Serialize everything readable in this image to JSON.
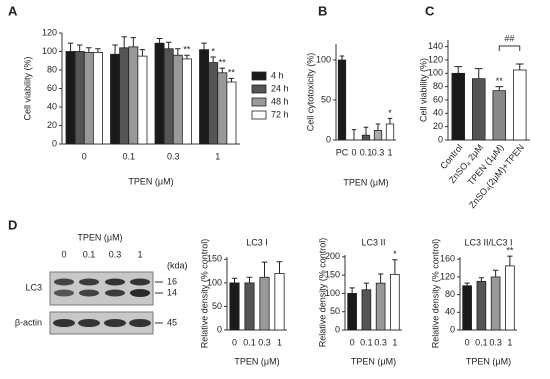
{
  "chart_data": [
    {
      "type": "bar",
      "panel_label": "A",
      "y_label": "Cell viability  (%)",
      "x_label": "TPEN (μM)",
      "categories": [
        "0",
        "0.1",
        "0.3",
        "1"
      ],
      "series": [
        {
          "name": "4 h",
          "color": "#1a1a1a",
          "values": [
            100,
            97,
            109,
            102
          ],
          "errors": [
            9,
            10,
            5,
            7
          ],
          "significance": [
            null,
            null,
            null,
            null
          ]
        },
        {
          "name": "24 h",
          "color": "#555555",
          "values": [
            100,
            104,
            103,
            88
          ],
          "errors": [
            7,
            12,
            7,
            6
          ],
          "significance": [
            null,
            null,
            null,
            "*"
          ]
        },
        {
          "name": "48 h",
          "color": "#999999",
          "values": [
            99,
            105,
            96,
            77
          ],
          "errors": [
            5,
            10,
            7,
            5
          ],
          "significance": [
            null,
            null,
            null,
            "**"
          ]
        },
        {
          "name": "72 h",
          "color": "#ffffff",
          "values": [
            99,
            95,
            92,
            67
          ],
          "errors": [
            4,
            7,
            4,
            4
          ],
          "significance": [
            null,
            null,
            "**",
            "**"
          ]
        }
      ],
      "ylim": [
        0,
        120
      ],
      "yticks": [
        0,
        20,
        40,
        60,
        80,
        100,
        120
      ]
    },
    {
      "type": "bar",
      "panel_label": "B",
      "y_label": "Cell cytotoxicity (%)",
      "x_label": "TPEN (μM)",
      "categories": [
        "PC",
        "0",
        "0.1",
        "0.3",
        "1"
      ],
      "values": [
        100,
        0,
        6,
        12,
        20
      ],
      "errors": [
        5,
        13,
        10,
        8,
        7
      ],
      "colors": [
        "#1a1a1a",
        "#1a1a1a",
        "#555555",
        "#aaaaaa",
        "#ffffff"
      ],
      "significance": [
        null,
        null,
        null,
        null,
        "*"
      ],
      "ylim": [
        0,
        120
      ],
      "yticks": [
        0,
        50,
        100
      ]
    },
    {
      "type": "bar",
      "panel_label": "C",
      "y_label": "Cell viability  (%)",
      "categories": [
        "Control",
        "ZnSO₄ 2μM",
        "TPEN (1μM)",
        "ZnSO₄(2μM)+TPEN"
      ],
      "values": [
        100,
        92,
        74,
        105
      ],
      "errors": [
        10,
        15,
        6,
        9
      ],
      "colors": [
        "#1a1a1a",
        "#555555",
        "#888888",
        "#ffffff"
      ],
      "significance": [
        null,
        null,
        "**",
        null
      ],
      "bracket_label": "##",
      "ylim": [
        0,
        150
      ],
      "yticks": [
        0,
        20,
        40,
        60,
        80,
        100,
        120,
        140
      ]
    },
    {
      "type": "bar",
      "title": "LC3 I",
      "y_label": "Relative density (% control)",
      "x_label": "TPEN (μM)",
      "categories": [
        "0",
        "0.1",
        "0.3",
        "1"
      ],
      "values": [
        100,
        100,
        112,
        120
      ],
      "errors": [
        10,
        12,
        32,
        25
      ],
      "colors": [
        "#1a1a1a",
        "#555555",
        "#999999",
        "#ffffff"
      ],
      "significance": [
        null,
        null,
        null,
        null
      ],
      "ylim": [
        0,
        155
      ],
      "yticks": [
        0,
        50,
        100,
        150
      ]
    },
    {
      "type": "bar",
      "title": "LC3 II",
      "y_label": "Relative density (% control)",
      "x_label": "TPEN (μM)",
      "categories": [
        "0",
        "0.1",
        "0.3",
        "1"
      ],
      "values": [
        100,
        110,
        128,
        152
      ],
      "errors": [
        15,
        18,
        25,
        40
      ],
      "colors": [
        "#1a1a1a",
        "#555555",
        "#999999",
        "#ffffff"
      ],
      "significance": [
        null,
        null,
        null,
        "*"
      ],
      "ylim": [
        0,
        205
      ],
      "yticks": [
        0,
        50,
        100,
        150,
        200
      ]
    },
    {
      "type": "bar",
      "title": "LC3 II/LC3 I",
      "y_label": "Relative density (% control)",
      "x_label": "TPEN (μM)",
      "categories": [
        "0",
        "0.1",
        "0.3",
        "1"
      ],
      "values": [
        100,
        110,
        120,
        145
      ],
      "errors": [
        6,
        8,
        15,
        22
      ],
      "colors": [
        "#1a1a1a",
        "#555555",
        "#999999",
        "#ffffff"
      ],
      "significance": [
        null,
        null,
        null,
        "**"
      ],
      "ylim": [
        0,
        165
      ],
      "yticks": [
        0,
        40,
        80,
        120,
        160
      ]
    }
  ],
  "blot": {
    "panel_label": "D",
    "title": "TPEN (μM)",
    "lanes": [
      "0",
      "0.1",
      "0.3",
      "1"
    ],
    "unit": "(kda)",
    "rows": [
      {
        "label": "LC3",
        "markers": [
          "16",
          "14"
        ]
      },
      {
        "label": "β-actin",
        "markers": [
          "45"
        ]
      }
    ]
  }
}
